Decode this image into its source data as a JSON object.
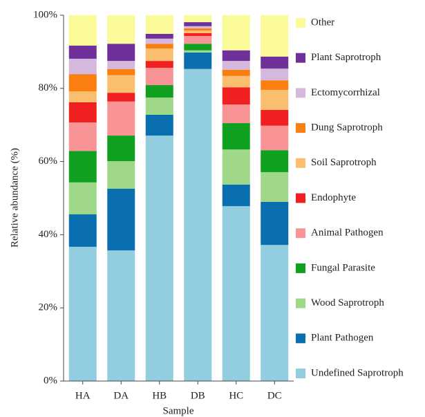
{
  "chart_data": {
    "type": "stacked_bar",
    "xlabel": "Sample",
    "ylabel": "Relative abundance (%)",
    "categories": [
      "HA",
      "DA",
      "HB",
      "DB",
      "HC",
      "DC"
    ],
    "ylim": [
      0,
      100
    ],
    "yticks": [
      {
        "value": 0,
        "label": "0%"
      },
      {
        "value": 20,
        "label": "20%"
      },
      {
        "value": 40,
        "label": "40%"
      },
      {
        "value": 60,
        "label": "60%"
      },
      {
        "value": 80,
        "label": "80%"
      },
      {
        "value": 100,
        "label": "100%"
      }
    ],
    "series": [
      {
        "name": "Undefined Saprotroph",
        "color": "#92cde0",
        "values": [
          36.7,
          35.7,
          67.1,
          85.3,
          47.8,
          37.2
        ]
      },
      {
        "name": "Plant Pathogen",
        "color": "#0a6fae",
        "values": [
          8.9,
          16.9,
          5.7,
          4.5,
          5.9,
          11.8
        ]
      },
      {
        "name": "Wood Saprotroph",
        "color": "#9ed888",
        "values": [
          8.7,
          7.5,
          4.7,
          0.6,
          9.6,
          8.1
        ]
      },
      {
        "name": "Fungal Parasite",
        "color": "#10a020",
        "values": [
          8.6,
          7.0,
          3.4,
          1.8,
          7.2,
          6.0
        ]
      },
      {
        "name": "Animal Pathogen",
        "color": "#f89495",
        "values": [
          7.8,
          9.3,
          4.7,
          2.1,
          5.1,
          6.7
        ]
      },
      {
        "name": "Endophyte",
        "color": "#f02020",
        "values": [
          5.5,
          2.4,
          1.9,
          0.8,
          4.7,
          4.3
        ]
      },
      {
        "name": "Soil Saprotroph",
        "color": "#fbbd6e",
        "values": [
          3.0,
          4.8,
          3.4,
          0.7,
          3.1,
          5.5
        ]
      },
      {
        "name": "Dung Saprotroph",
        "color": "#fa7e10",
        "values": [
          4.7,
          1.7,
          1.3,
          0.6,
          1.7,
          2.6
        ]
      },
      {
        "name": "Ectomycorrhizal",
        "color": "#d5b8dd",
        "values": [
          4.2,
          2.2,
          1.4,
          0.6,
          2.4,
          3.2
        ]
      },
      {
        "name": "Plant Saprotroph",
        "color": "#70309a",
        "values": [
          3.6,
          4.7,
          1.3,
          1.1,
          2.9,
          3.3
        ]
      },
      {
        "name": "Other",
        "color": "#fafa99",
        "values": [
          8.3,
          7.8,
          5.1,
          1.9,
          9.6,
          11.3
        ]
      }
    ]
  }
}
